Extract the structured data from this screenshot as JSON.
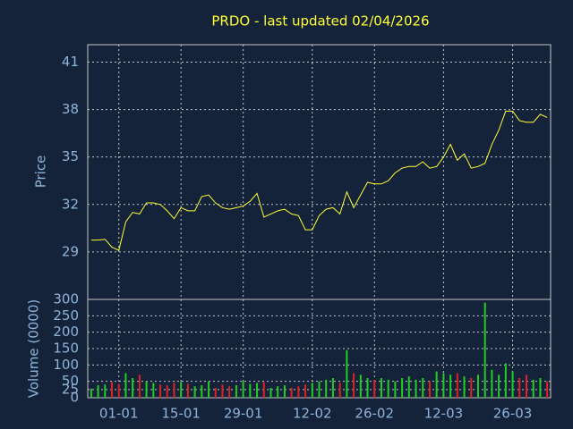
{
  "chart_data": [
    {
      "type": "line",
      "title": "PRDO - last updated 02/04/2026",
      "y_label": "Price",
      "categories": [
        null,
        null,
        null,
        null,
        "01-01",
        null,
        null,
        null,
        null,
        null,
        null,
        null,
        null,
        "15-01",
        null,
        null,
        null,
        null,
        null,
        null,
        null,
        null,
        "29-01",
        null,
        null,
        null,
        null,
        null,
        null,
        null,
        null,
        null,
        "12-02",
        null,
        null,
        null,
        null,
        null,
        null,
        null,
        null,
        "26-02",
        null,
        null,
        null,
        null,
        null,
        null,
        null,
        null,
        null,
        "12-03",
        null,
        null,
        null,
        null,
        null,
        null,
        null,
        null,
        null,
        "26-03",
        null,
        null,
        null,
        null,
        null
      ],
      "values": [
        29.75,
        29.75,
        29.8,
        29.3,
        29.1,
        30.9,
        31.5,
        31.4,
        32.1,
        32.1,
        32.0,
        31.6,
        31.1,
        31.8,
        31.6,
        31.6,
        32.5,
        32.6,
        32.1,
        31.8,
        31.7,
        31.8,
        31.9,
        32.2,
        32.7,
        31.2,
        31.4,
        31.6,
        31.7,
        31.4,
        31.3,
        30.4,
        30.4,
        31.3,
        31.7,
        31.8,
        31.4,
        32.8,
        31.8,
        32.6,
        33.4,
        33.3,
        33.3,
        33.5,
        34.0,
        34.3,
        34.4,
        34.4,
        34.7,
        34.3,
        34.4,
        35.0,
        35.8,
        34.8,
        35.2,
        34.3,
        34.4,
        34.6,
        35.8,
        36.7,
        37.9,
        37.9,
        37.3,
        37.2,
        37.2,
        37.7,
        37.5
      ],
      "color": "#ffff33",
      "ylim": [
        26,
        42.1
      ],
      "yticks": [
        29,
        32,
        35,
        38,
        41
      ],
      "grid": true
    },
    {
      "type": "bar",
      "y_label": "Volume (0000)",
      "values": [
        28,
        38,
        40,
        48,
        42,
        75,
        60,
        70,
        50,
        45,
        40,
        38,
        45,
        48,
        42,
        35,
        38,
        50,
        30,
        40,
        35,
        38,
        50,
        42,
        45,
        48,
        30,
        35,
        38,
        30,
        35,
        40,
        45,
        50,
        55,
        60,
        45,
        145,
        75,
        70,
        60,
        55,
        60,
        55,
        50,
        60,
        65,
        55,
        60,
        50,
        80,
        75,
        70,
        75,
        65,
        60,
        70,
        290,
        85,
        70,
        105,
        80,
        60,
        70,
        55,
        60,
        50
      ],
      "up_color": "#22cc22",
      "down_color": "#dd2222",
      "ylim": [
        0,
        300
      ],
      "yticks": [
        0,
        25,
        50,
        100,
        150,
        200,
        250,
        300
      ],
      "grid": true
    }
  ]
}
